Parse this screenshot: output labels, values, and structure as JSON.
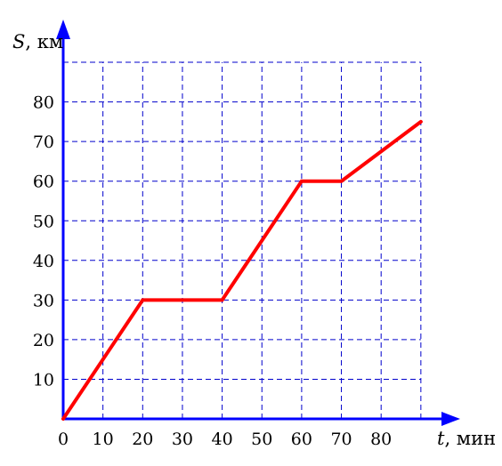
{
  "chart_data": {
    "type": "line",
    "title": "",
    "xlabel": {
      "var": "t",
      "unit": ", мин"
    },
    "ylabel": {
      "var": "S",
      "unit": ", км"
    },
    "xlim": [
      0,
      90
    ],
    "ylim": [
      0,
      90
    ],
    "x_ticks": [
      0,
      10,
      20,
      30,
      40,
      50,
      60,
      70,
      80
    ],
    "x_tick_labels": [
      "0",
      "10",
      "20",
      "30",
      "40",
      "50",
      "60",
      "70",
      "80"
    ],
    "y_ticks": [
      10,
      20,
      30,
      40,
      50,
      60,
      70,
      80
    ],
    "y_tick_labels": [
      "10",
      "20",
      "30",
      "40",
      "50",
      "60",
      "70",
      "80"
    ],
    "grid": true,
    "grid_step": 10,
    "series": [
      {
        "x": [
          0,
          20,
          40,
          60,
          70,
          90
        ],
        "y": [
          0,
          30,
          30,
          60,
          60,
          75
        ]
      }
    ],
    "colors": {
      "axes": "#0000ff",
      "grid": "#0000cc",
      "line": "#ff0000"
    }
  }
}
